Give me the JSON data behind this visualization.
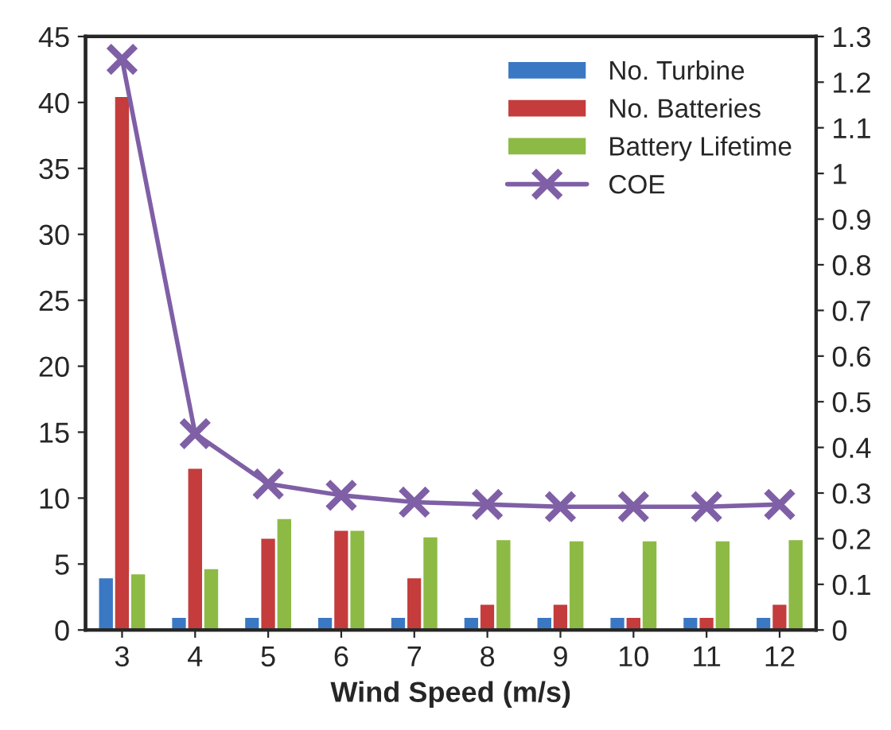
{
  "chart_data": {
    "type": "bar",
    "xlabel": "Wind Speed (m/s)",
    "categories": [
      "3",
      "4",
      "5",
      "6",
      "7",
      "8",
      "9",
      "10",
      "11",
      "12"
    ],
    "series": [
      {
        "name": "No. Turbine",
        "color": "#3a78c4",
        "values": [
          4,
          1,
          1,
          1,
          1,
          1,
          1,
          1,
          1,
          1
        ]
      },
      {
        "name": "No. Batteries",
        "color": "#c43c3c",
        "values": [
          40.5,
          12.3,
          7,
          7.6,
          4,
          2,
          2,
          1,
          1,
          2
        ]
      },
      {
        "name": "Battery Lifetime",
        "color": "#8dba45",
        "values": [
          4.3,
          4.7,
          8.5,
          7.6,
          7.1,
          6.9,
          6.8,
          6.8,
          6.8,
          6.9
        ]
      },
      {
        "name": "COE",
        "type": "line",
        "axis": "y2",
        "color": "#7f5fa6",
        "marker": "cross",
        "values": [
          1.25,
          0.43,
          0.32,
          0.295,
          0.28,
          0.275,
          0.27,
          0.27,
          0.27,
          0.275
        ]
      }
    ],
    "ylim": [
      0,
      45
    ],
    "yticks": [
      0,
      5,
      10,
      15,
      20,
      25,
      30,
      35,
      40,
      45
    ],
    "y2lim": [
      0,
      1.3
    ],
    "y2ticks": [
      0,
      0.1,
      0.2,
      0.3,
      0.4,
      0.5,
      0.6,
      0.7,
      0.8,
      0.9,
      1,
      1.1,
      1.2,
      1.3
    ],
    "legend": "top right",
    "grid": false
  }
}
